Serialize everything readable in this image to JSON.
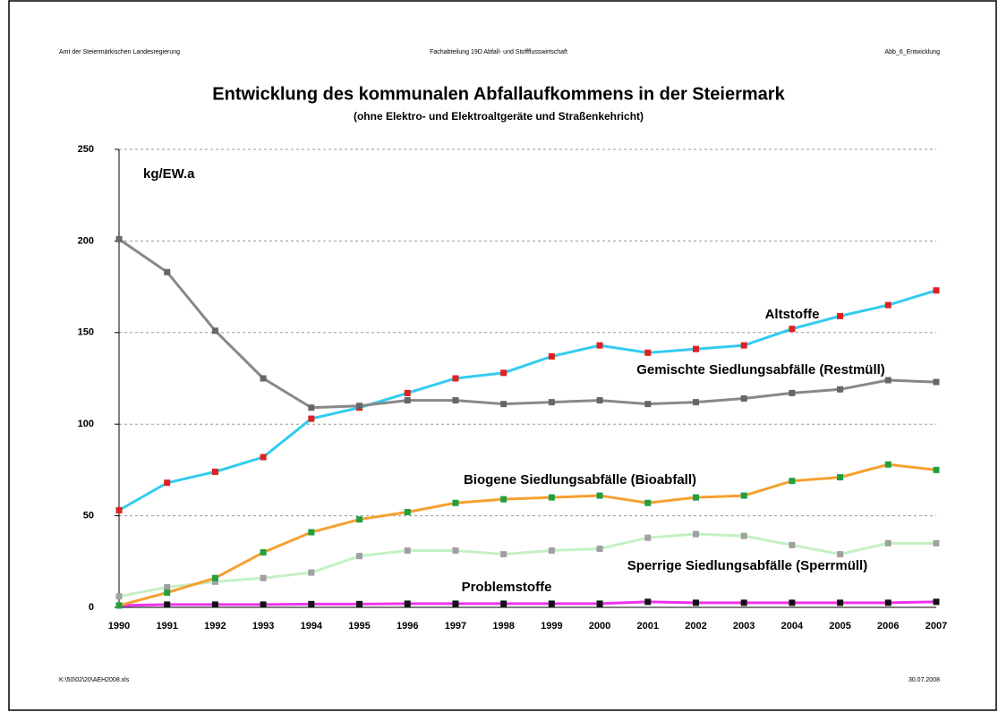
{
  "chart_data": {
    "type": "line",
    "header_left": "Amt der Steiermärkischen Landesregierung",
    "header_center": "Fachabteilung 19D Abfall- und Stoffflusswirtschaft",
    "header_right": "Abb_6_Entwicklung",
    "title": "Entwicklung des kommunalen Abfallaufkommens in der Steiermark",
    "subtitle": "(ohne Elektro- und Elektroaltgeräte und Straßenkehricht)",
    "y_label": "kg/EW.a",
    "footer_left": "K:\\50\\02\\20\\AEH2008.xls",
    "footer_right": "30.07.2008",
    "categories": [
      "1990",
      "1991",
      "1992",
      "1993",
      "1994",
      "1995",
      "1996",
      "1997",
      "1998",
      "1999",
      "2000",
      "2001",
      "2002",
      "2003",
      "2004",
      "2005",
      "2006",
      "2007"
    ],
    "ylim": [
      0,
      250
    ],
    "yticks": [
      0,
      50,
      100,
      150,
      200,
      250
    ],
    "grid": true,
    "series": [
      {
        "name": "Altstoffe",
        "color": "#33ccee",
        "marker_color": "#e02020",
        "values": [
          53,
          68,
          74,
          82,
          103,
          109,
          117,
          125,
          128,
          137,
          143,
          139,
          141,
          143,
          152,
          159,
          165,
          173
        ]
      },
      {
        "name": "Gemischte Siedlungsabfälle (Restmüll)",
        "color": "#888888",
        "marker_color": "#666666",
        "values": [
          201,
          183,
          151,
          125,
          109,
          110,
          113,
          113,
          111,
          112,
          113,
          111,
          112,
          114,
          117,
          119,
          124,
          123
        ]
      },
      {
        "name": "Biogene Siedlungsabfälle (Bioabfall)",
        "color": "#f5a030",
        "marker_color": "#20a040",
        "values": [
          1,
          8,
          16,
          30,
          41,
          48,
          52,
          57,
          59,
          60,
          61,
          57,
          60,
          61,
          69,
          71,
          78,
          75
        ]
      },
      {
        "name": "Sperrige Siedlungsabfälle (Sperrmüll)",
        "color": "#c4f0c4",
        "marker_color": "#a0a0a0",
        "values": [
          6,
          11,
          14,
          16,
          19,
          28,
          31,
          31,
          29,
          31,
          32,
          38,
          40,
          39,
          34,
          29,
          35,
          35
        ]
      },
      {
        "name": "Problemstoffe",
        "color": "#ee33ee",
        "marker_color": "#111111",
        "values": [
          1,
          1.5,
          1.5,
          1.5,
          1.8,
          1.8,
          2,
          2,
          2,
          2,
          2,
          3,
          2.5,
          2.5,
          2.5,
          2.5,
          2.5,
          3
        ]
      }
    ]
  }
}
